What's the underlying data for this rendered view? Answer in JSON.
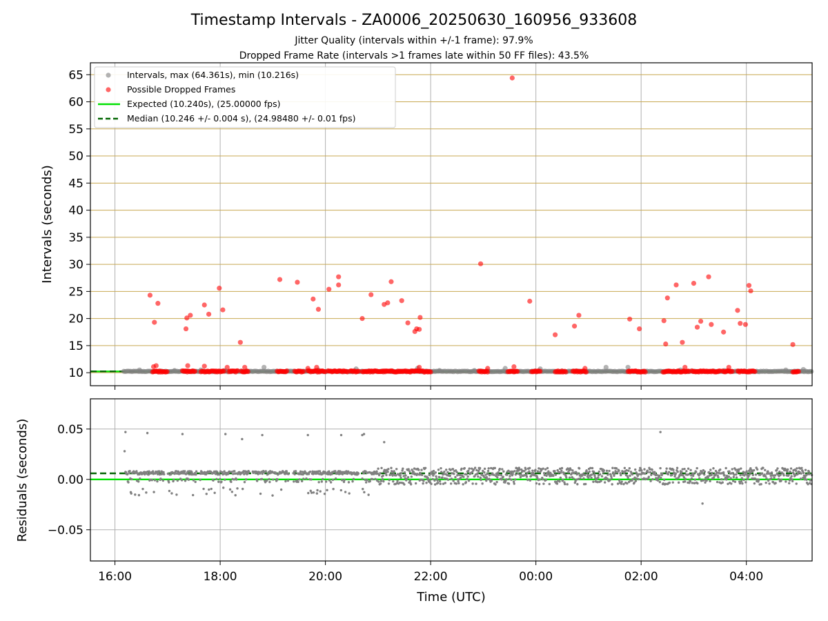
{
  "title": "Timestamp Intervals - ZA0006_20250630_160956_933608",
  "subtitle_lines": [
    "Jitter Quality (intervals within +/-1 frame): 97.9%",
    "Dropped Frame Rate (intervals >1 frames late within 50 FF files): 43.5%"
  ],
  "colors": {
    "interval": "#808080",
    "dropped": "#ff0000",
    "expected": "#00e000",
    "median": "#006400",
    "hgrid_top": "#c8a850",
    "grid": "#b0b0b0"
  },
  "chart_data": [
    {
      "type": "scatter",
      "panel": "top",
      "ylabel": "Intervals (seconds)",
      "xlim": [
        "15:32",
        "05:15"
      ],
      "ylim": [
        7.6,
        67.2
      ],
      "yticks": [
        10,
        15,
        20,
        25,
        30,
        35,
        40,
        45,
        50,
        55,
        60,
        65
      ],
      "ytick_labels": [
        "10",
        "15",
        "20",
        "25",
        "30",
        "35",
        "40",
        "45",
        "50",
        "55",
        "60",
        "65"
      ],
      "grid": true,
      "legend_position": "upper left",
      "legend": [
        "Intervals, max (64.361s), min (10.216s)",
        "Possible Dropped Frames",
        "Expected (10.240s), (25.00000 fps)",
        "Median (10.246 +/- 0.004 s), (24.98480 +/- 0.01 fps)"
      ],
      "expected_value": 10.24,
      "median_value": 10.246,
      "interval_points_above_baseline": [
        {
          "x": "16:28",
          "y": 10.5
        },
        {
          "x": "17:08",
          "y": 10.4
        },
        {
          "x": "17:38",
          "y": 10.5
        },
        {
          "x": "18:05",
          "y": 10.4
        },
        {
          "x": "18:50",
          "y": 11.0
        },
        {
          "x": "19:52",
          "y": 10.5
        },
        {
          "x": "20:35",
          "y": 10.7
        },
        {
          "x": "21:45",
          "y": 10.8
        },
        {
          "x": "22:10",
          "y": 10.4
        },
        {
          "x": "22:50",
          "y": 10.4
        },
        {
          "x": "23:25",
          "y": 10.8
        },
        {
          "x": "00:05",
          "y": 10.7
        },
        {
          "x": "01:20",
          "y": 11.0
        },
        {
          "x": "01:45",
          "y": 11.0
        },
        {
          "x": "02:45",
          "y": 10.5
        },
        {
          "x": "03:35",
          "y": 10.4
        },
        {
          "x": "04:45",
          "y": 10.5
        },
        {
          "x": "05:05",
          "y": 10.6
        }
      ],
      "dropped_points": [
        {
          "x": "16:40",
          "y": 24.3
        },
        {
          "x": "16:45",
          "y": 19.3
        },
        {
          "x": "16:49",
          "y": 22.8
        },
        {
          "x": "16:44",
          "y": 11.1
        },
        {
          "x": "16:47",
          "y": 11.3
        },
        {
          "x": "17:21",
          "y": 18.1
        },
        {
          "x": "17:22",
          "y": 20.1
        },
        {
          "x": "17:26",
          "y": 20.6
        },
        {
          "x": "17:23",
          "y": 11.3
        },
        {
          "x": "17:42",
          "y": 22.5
        },
        {
          "x": "17:47",
          "y": 20.8
        },
        {
          "x": "17:42",
          "y": 11.2
        },
        {
          "x": "17:59",
          "y": 25.6
        },
        {
          "x": "18:03",
          "y": 21.6
        },
        {
          "x": "18:08",
          "y": 11.0
        },
        {
          "x": "18:23",
          "y": 15.6
        },
        {
          "x": "18:28",
          "y": 11.0
        },
        {
          "x": "19:08",
          "y": 27.2
        },
        {
          "x": "19:28",
          "y": 26.7
        },
        {
          "x": "19:40",
          "y": 10.8
        },
        {
          "x": "19:46",
          "y": 23.6
        },
        {
          "x": "19:52",
          "y": 21.7
        },
        {
          "x": "19:50",
          "y": 11.0
        },
        {
          "x": "20:04",
          "y": 25.4
        },
        {
          "x": "20:15",
          "y": 26.2
        },
        {
          "x": "20:15",
          "y": 27.7
        },
        {
          "x": "20:42",
          "y": 20.0
        },
        {
          "x": "20:52",
          "y": 24.4
        },
        {
          "x": "21:07",
          "y": 22.6
        },
        {
          "x": "21:11",
          "y": 22.9
        },
        {
          "x": "21:15",
          "y": 26.8
        },
        {
          "x": "21:27",
          "y": 23.3
        },
        {
          "x": "21:34",
          "y": 19.2
        },
        {
          "x": "21:42",
          "y": 17.6
        },
        {
          "x": "21:44",
          "y": 18.1
        },
        {
          "x": "21:47",
          "y": 18.0
        },
        {
          "x": "21:48",
          "y": 20.2
        },
        {
          "x": "21:47",
          "y": 11.0
        },
        {
          "x": "22:57",
          "y": 30.1
        },
        {
          "x": "23:05",
          "y": 10.8
        },
        {
          "x": "23:33",
          "y": 64.4
        },
        {
          "x": "23:35",
          "y": 11.1
        },
        {
          "x": "23:53",
          "y": 23.2
        },
        {
          "x": "00:22",
          "y": 17.0
        },
        {
          "x": "00:44",
          "y": 18.6
        },
        {
          "x": "00:49",
          "y": 20.6
        },
        {
          "x": "00:56",
          "y": 10.8
        },
        {
          "x": "01:47",
          "y": 19.9
        },
        {
          "x": "01:58",
          "y": 18.1
        },
        {
          "x": "02:26",
          "y": 19.6
        },
        {
          "x": "02:28",
          "y": 15.3
        },
        {
          "x": "02:30",
          "y": 23.8
        },
        {
          "x": "02:40",
          "y": 26.2
        },
        {
          "x": "02:47",
          "y": 15.6
        },
        {
          "x": "02:50",
          "y": 11.0
        },
        {
          "x": "03:00",
          "y": 26.5
        },
        {
          "x": "03:04",
          "y": 18.4
        },
        {
          "x": "03:08",
          "y": 19.5
        },
        {
          "x": "03:17",
          "y": 27.7
        },
        {
          "x": "03:20",
          "y": 18.9
        },
        {
          "x": "03:34",
          "y": 17.5
        },
        {
          "x": "03:40",
          "y": 11.0
        },
        {
          "x": "03:50",
          "y": 21.5
        },
        {
          "x": "03:53",
          "y": 19.1
        },
        {
          "x": "03:59",
          "y": 18.9
        },
        {
          "x": "04:03",
          "y": 26.1
        },
        {
          "x": "04:05",
          "y": 25.1
        },
        {
          "x": "04:53",
          "y": 15.2
        }
      ],
      "dropped_baseline_clusters": [
        [
          "16:43",
          "17:00"
        ],
        [
          "17:17",
          "17:32"
        ],
        [
          "17:38",
          "18:05"
        ],
        [
          "18:10",
          "18:20"
        ],
        [
          "18:24",
          "18:32"
        ],
        [
          "19:05",
          "19:17"
        ],
        [
          "19:25",
          "19:35"
        ],
        [
          "19:40",
          "20:00"
        ],
        [
          "20:03",
          "20:25"
        ],
        [
          "20:28",
          "20:38"
        ],
        [
          "20:42",
          "21:05"
        ],
        [
          "21:05",
          "22:00"
        ],
        [
          "22:55",
          "23:05"
        ],
        [
          "23:28",
          "23:40"
        ],
        [
          "23:55",
          "00:05"
        ],
        [
          "00:22",
          "00:35"
        ],
        [
          "00:42",
          "00:58"
        ],
        [
          "01:45",
          "02:05"
        ],
        [
          "02:25",
          "02:55"
        ],
        [
          "02:58",
          "03:30"
        ],
        [
          "03:33",
          "03:45"
        ],
        [
          "03:50",
          "04:10"
        ],
        [
          "04:53",
          "05:00"
        ]
      ]
    },
    {
      "type": "scatter",
      "panel": "bottom",
      "xlabel": "Time (UTC)",
      "ylabel": "Residuals (seconds)",
      "xlim": [
        "15:32",
        "05:15"
      ],
      "ylim": [
        -0.081,
        0.08
      ],
      "yticks": [
        -0.05,
        0.0,
        0.05
      ],
      "ytick_labels": [
        "−0.05",
        "0.00",
        "0.05"
      ],
      "xticks": [
        "16:00",
        "18:00",
        "20:00",
        "22:00",
        "00:00",
        "02:00",
        "04:00"
      ],
      "grid": true,
      "expected_residual": 0.0,
      "median_residual": 0.006,
      "outlier_points": [
        {
          "x": "16:12",
          "y": 0.047
        },
        {
          "x": "16:11",
          "y": 0.028
        },
        {
          "x": "16:37",
          "y": 0.046
        },
        {
          "x": "17:17",
          "y": 0.045
        },
        {
          "x": "18:06",
          "y": 0.045
        },
        {
          "x": "18:25",
          "y": 0.04
        },
        {
          "x": "18:48",
          "y": 0.044
        },
        {
          "x": "19:40",
          "y": 0.044
        },
        {
          "x": "20:18",
          "y": 0.044
        },
        {
          "x": "20:42",
          "y": 0.044
        },
        {
          "x": "20:44",
          "y": 0.045
        },
        {
          "x": "21:07",
          "y": 0.037
        },
        {
          "x": "02:22",
          "y": 0.047
        },
        {
          "x": "03:10",
          "y": -0.024
        }
      ]
    }
  ]
}
